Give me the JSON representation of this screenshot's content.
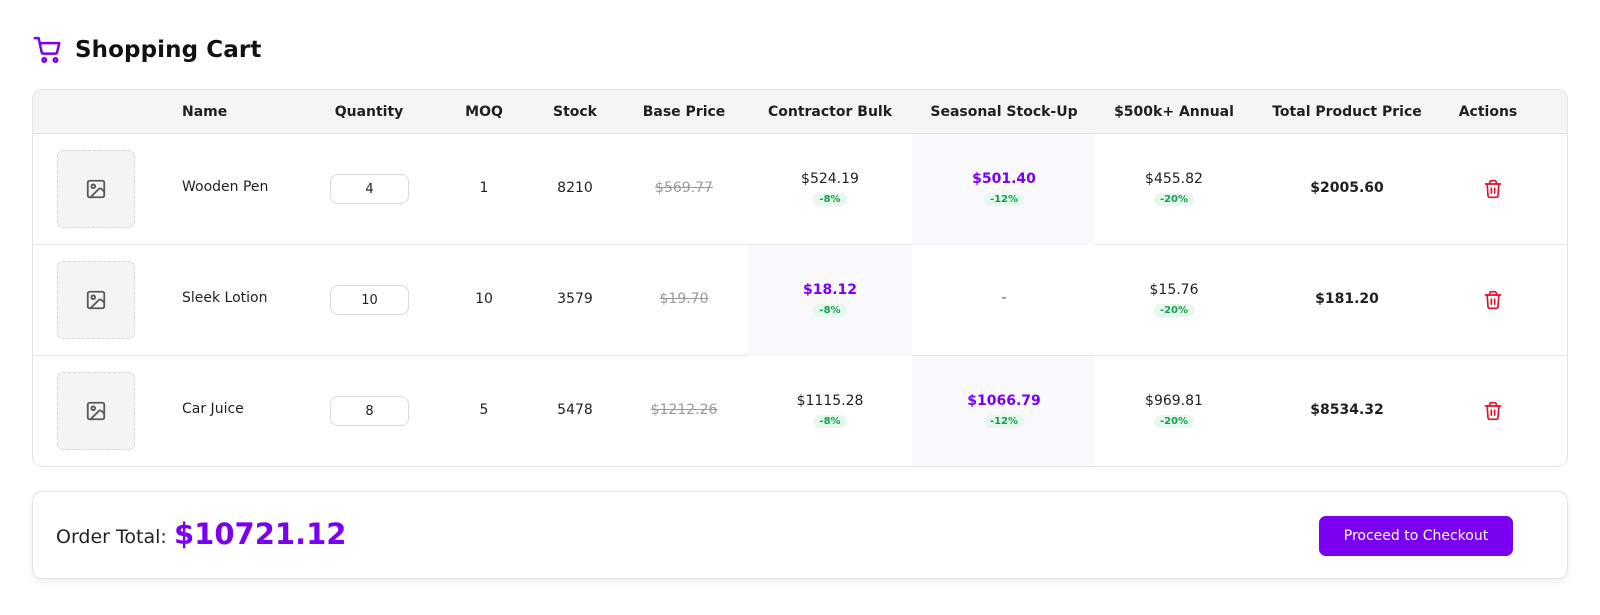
{
  "header": {
    "title": "Shopping Cart",
    "icon": "shopping-cart-icon"
  },
  "table": {
    "columns": {
      "name": "Name",
      "quantity": "Quantity",
      "moq": "MOQ",
      "stock": "Stock",
      "base_price": "Base Price",
      "tier1": "Contractor Bulk",
      "tier2": "Seasonal Stock-Up",
      "tier3": "$500k+ Annual",
      "total": "Total Product Price",
      "actions": "Actions"
    },
    "rows": [
      {
        "name": "Wooden Pen",
        "quantity": "4",
        "moq": "1",
        "stock": "8210",
        "base_price": "$569.77",
        "tier1": {
          "price": "$524.19",
          "discount": "-8%"
        },
        "tier2": {
          "price": "$501.40",
          "discount": "-12%"
        },
        "tier3": {
          "price": "$455.82",
          "discount": "-20%"
        },
        "best_tier": "tier2",
        "total": "$2005.60"
      },
      {
        "name": "Sleek Lotion",
        "quantity": "10",
        "moq": "10",
        "stock": "3579",
        "base_price": "$19.70",
        "tier1": {
          "price": "$18.12",
          "discount": "-8%"
        },
        "tier2": {
          "price": "-",
          "discount": ""
        },
        "tier3": {
          "price": "$15.76",
          "discount": "-20%"
        },
        "best_tier": "tier1",
        "total": "$181.20"
      },
      {
        "name": "Car Juice",
        "quantity": "8",
        "moq": "5",
        "stock": "5478",
        "base_price": "$1212.26",
        "tier1": {
          "price": "$1115.28",
          "discount": "-8%"
        },
        "tier2": {
          "price": "$1066.79",
          "discount": "-12%"
        },
        "tier3": {
          "price": "$969.81",
          "discount": "-20%"
        },
        "best_tier": "tier2",
        "total": "$8534.32"
      }
    ]
  },
  "summary": {
    "label": "Order Total:",
    "amount": "$10721.12",
    "checkout_label": "Proceed to Checkout"
  },
  "colors": {
    "accent": "#7a00f0",
    "discount_text": "#10a04c",
    "discount_bg": "#e6f8ee",
    "delete": "#e0102a",
    "highlight_bg": "#f8f8fd"
  }
}
